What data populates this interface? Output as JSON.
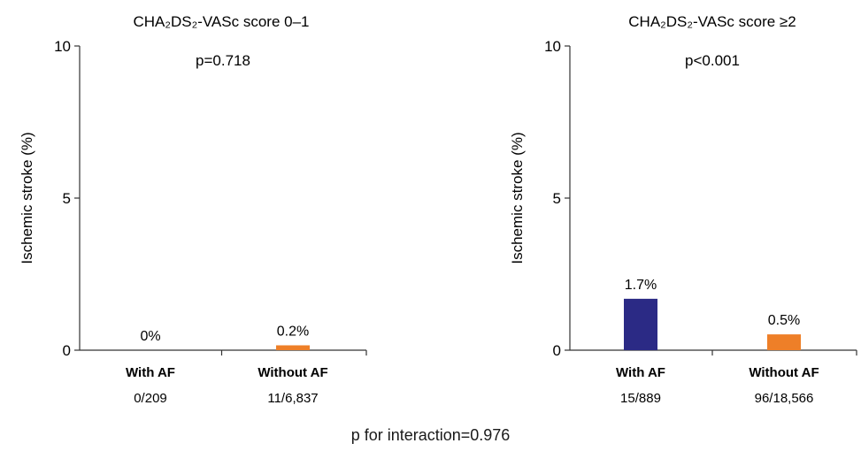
{
  "footer": "p for interaction=0.976",
  "chart_data": [
    {
      "type": "bar",
      "title": "CHA₂DS₂-VASc score 0–1",
      "p_value_label": "p=0.718",
      "ylabel": "Ischemic stroke (%)",
      "ylim": [
        0,
        10
      ],
      "yticks": [
        "0",
        "5",
        "10"
      ],
      "categories": [
        "With AF",
        "Without AF"
      ],
      "counts": [
        "0/209",
        "11/6,837"
      ],
      "values": [
        0,
        0.16
      ],
      "data_labels": [
        "0%",
        "0.2%"
      ],
      "colors": [
        "#2b2a85",
        "#ee7f28"
      ]
    },
    {
      "type": "bar",
      "title": "CHA₂DS₂-VASc score ≥2",
      "p_value_label": "p<0.001",
      "ylabel": "Ischemic stroke (%)",
      "ylim": [
        0,
        10
      ],
      "yticks": [
        "0",
        "5",
        "10"
      ],
      "categories": [
        "With AF",
        "Without AF"
      ],
      "counts": [
        "15/889",
        "96/18,566"
      ],
      "values": [
        1.69,
        0.52
      ],
      "data_labels": [
        "1.7%",
        "0.5%"
      ],
      "colors": [
        "#2b2a85",
        "#ee7f28"
      ]
    }
  ]
}
